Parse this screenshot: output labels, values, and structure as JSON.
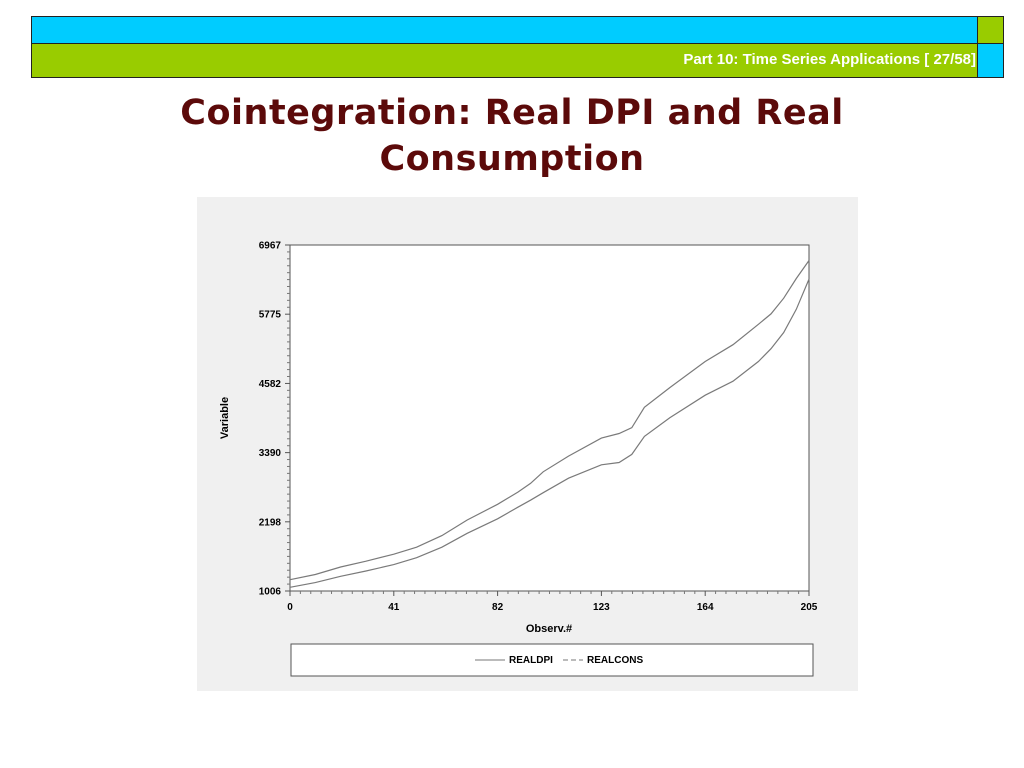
{
  "header": {
    "text": "Part 10: Time Series Applications [ 27/58]",
    "colors": {
      "cyan": "#00ccff",
      "green": "#99cc00",
      "text": "#ffffff"
    }
  },
  "slide": {
    "title_line1": "Cointegration: Real DPI and Real",
    "title_line2": "Consumption",
    "title_color": "#5c0a0a"
  },
  "chart_data": {
    "type": "line",
    "title": "",
    "xlabel": "Observ.#",
    "ylabel": "Variable",
    "xlim": [
      0,
      205
    ],
    "ylim": [
      1006,
      6967
    ],
    "x_ticks": [
      "0",
      "41",
      "82",
      "123",
      "164",
      "205"
    ],
    "y_ticks": [
      "6967",
      "5775",
      "4582",
      "3390",
      "2198",
      "1006"
    ],
    "grid": false,
    "legend_position": "bottom",
    "x": [
      0,
      10,
      20,
      30,
      41,
      50,
      60,
      70,
      82,
      90,
      95,
      100,
      110,
      123,
      130,
      135,
      140,
      150,
      164,
      175,
      185,
      190,
      195,
      200,
      205
    ],
    "series": [
      {
        "name": "REALDPI",
        "values": [
          1200,
          1290,
          1420,
          1520,
          1640,
          1760,
          1960,
          2230,
          2500,
          2710,
          2860,
          3060,
          3330,
          3640,
          3720,
          3820,
          4170,
          4510,
          4960,
          5250,
          5600,
          5780,
          6050,
          6390,
          6700
        ]
      },
      {
        "name": "REALCONS",
        "values": [
          1070,
          1150,
          1260,
          1350,
          1460,
          1580,
          1760,
          2000,
          2250,
          2450,
          2570,
          2700,
          2950,
          3180,
          3220,
          3360,
          3670,
          3990,
          4380,
          4620,
          4960,
          5180,
          5460,
          5860,
          6380
        ]
      }
    ]
  }
}
